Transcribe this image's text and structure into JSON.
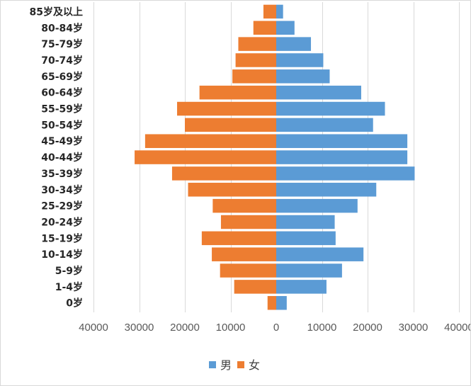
{
  "chart_data": {
    "type": "bar",
    "orientation": "horizontal",
    "title": "",
    "xlabel": "",
    "ylabel": "",
    "categories": [
      "85岁及以上",
      "80-84岁",
      "75-79岁",
      "70-74岁",
      "65-69岁",
      "60-64岁",
      "55-59岁",
      "50-54岁",
      "45-49岁",
      "40-44岁",
      "35-39岁",
      "30-34岁",
      "25-29岁",
      "20-24岁",
      "15-19岁",
      "10-14岁",
      "5-9岁",
      "1-4岁",
      "0岁"
    ],
    "series": [
      {
        "name": "男",
        "color": "#5b9bd5",
        "direction": "right",
        "values": [
          1500,
          4000,
          7600,
          10300,
          11700,
          18600,
          23800,
          21200,
          28700,
          28700,
          30300,
          21900,
          17800,
          12800,
          13000,
          19100,
          14400,
          11000,
          2300
        ]
      },
      {
        "name": "女",
        "color": "#ed7d31",
        "direction": "left",
        "values": [
          2800,
          5000,
          8300,
          8900,
          9600,
          16800,
          21700,
          20000,
          28700,
          31000,
          22800,
          19300,
          13900,
          12100,
          16300,
          14100,
          12300,
          9200,
          1900
        ]
      }
    ],
    "xlim": [
      -40000,
      40000
    ],
    "x_ticks": [
      -40000,
      -30000,
      -20000,
      -10000,
      0,
      10000,
      20000,
      30000,
      40000
    ],
    "x_tick_labels": [
      "40000",
      "30000",
      "20000",
      "10000",
      "0",
      "10000",
      "20000",
      "30000",
      "40000"
    ],
    "grid": true,
    "legend_position": "bottom-center",
    "legend": [
      {
        "label": "男",
        "color": "#5b9bd5"
      },
      {
        "label": "女",
        "color": "#ed7d31"
      }
    ]
  }
}
